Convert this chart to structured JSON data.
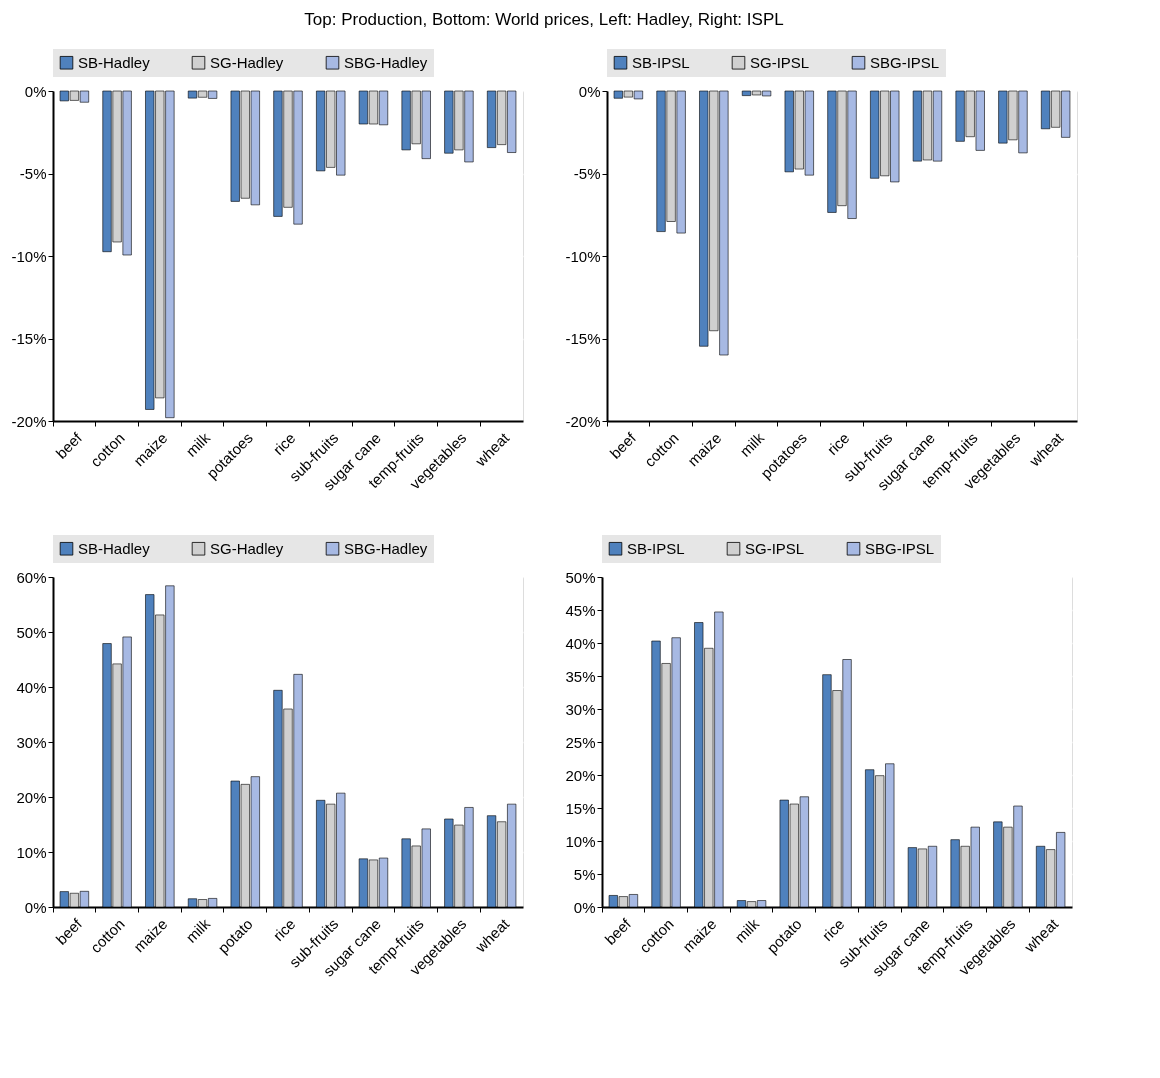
{
  "chart_data": [
    {
      "type": "bar",
      "title": "Top: Production, Bottom: World prices, Left: Hadley, Right: ISPL",
      "categories": [
        "beef",
        "cotton",
        "maize",
        "milk",
        "potatoes",
        "rice",
        "sub-fruits",
        "sugar cane",
        "temp-fruits",
        "vegetables",
        "wheat"
      ],
      "series": [
        {
          "name": "SB-Hadley",
          "color": "#4f81bd",
          "values": [
            -0.6,
            -9.74,
            -19.3,
            -0.43,
            -6.69,
            -7.6,
            -4.84,
            -2.0,
            -3.57,
            -3.77,
            -3.43
          ]
        },
        {
          "name": "SG-Hadley",
          "color": "#d0d0d0",
          "values": [
            -0.57,
            -9.15,
            -18.6,
            -0.38,
            -6.5,
            -7.05,
            -4.63,
            -2.0,
            -3.2,
            -3.57,
            -3.25
          ]
        },
        {
          "name": "SBG-Hadley",
          "color": "#a7b9e3",
          "values": [
            -0.68,
            -9.94,
            -19.8,
            -0.45,
            -6.9,
            -8.07,
            -5.1,
            -2.05,
            -4.1,
            -4.3,
            -3.73
          ]
        }
      ],
      "ylim": [
        -20,
        0
      ],
      "yticks": [
        {
          "value": -20,
          "label": "-20%"
        },
        {
          "value": -15,
          "label": "-15%"
        },
        {
          "value": -10,
          "label": "-10%"
        },
        {
          "value": -5,
          "label": "-5%"
        },
        {
          "value": 0,
          "label": "0%"
        }
      ],
      "grid": true,
      "legend": "top"
    },
    {
      "type": "bar",
      "categories": [
        "beef",
        "cotton",
        "maize",
        "milk",
        "potatoes",
        "rice",
        "sub-fruits",
        "sugar cane",
        "temp-fruits",
        "vegetables",
        "wheat"
      ],
      "series": [
        {
          "name": "SB-IPSL",
          "color": "#4f81bd",
          "values": [
            -0.44,
            -8.52,
            -15.47,
            -0.28,
            -4.9,
            -7.36,
            -5.29,
            -4.25,
            -3.05,
            -3.16,
            -2.29
          ]
        },
        {
          "name": "SG-IPSL",
          "color": "#d0d0d0",
          "values": [
            -0.37,
            -7.91,
            -14.53,
            -0.24,
            -4.73,
            -6.95,
            -5.14,
            -4.18,
            -2.77,
            -2.96,
            -2.2
          ]
        },
        {
          "name": "SBG-IPSL",
          "color": "#a7b9e3",
          "values": [
            -0.48,
            -8.61,
            -16.0,
            -0.3,
            -5.1,
            -7.73,
            -5.51,
            -4.25,
            -3.6,
            -3.75,
            -2.81
          ]
        }
      ],
      "ylim": [
        -20,
        0
      ],
      "yticks": [
        {
          "value": -20,
          "label": "-20%"
        },
        {
          "value": -15,
          "label": "-15%"
        },
        {
          "value": -10,
          "label": "-10%"
        },
        {
          "value": -5,
          "label": "-5%"
        },
        {
          "value": 0,
          "label": "0%"
        }
      ],
      "grid": true,
      "legend": "top"
    },
    {
      "type": "bar",
      "categories": [
        "beef",
        "cotton",
        "maize",
        "milk",
        "potato",
        "rice",
        "sub-fruits",
        "sugar cane",
        "temp-fruits",
        "vegetables",
        "wheat"
      ],
      "series": [
        {
          "name": "SB-Hadley",
          "color": "#4f81bd",
          "values": [
            2.8,
            47.9,
            56.8,
            1.5,
            22.9,
            39.4,
            19.4,
            8.76,
            12.4,
            16.0,
            16.6
          ]
        },
        {
          "name": "SG-Hadley",
          "color": "#d0d0d0",
          "values": [
            2.5,
            44.2,
            53.1,
            1.36,
            22.3,
            36.0,
            18.7,
            8.56,
            11.1,
            14.9,
            15.5
          ]
        },
        {
          "name": "SBG-Hadley",
          "color": "#a7b9e3",
          "values": [
            2.85,
            49.1,
            58.4,
            1.56,
            23.7,
            42.3,
            20.7,
            8.9,
            14.2,
            18.1,
            18.7
          ]
        }
      ],
      "ylim": [
        0,
        60
      ],
      "yticks": [
        {
          "value": 0,
          "label": "0%"
        },
        {
          "value": 10,
          "label": "10%"
        },
        {
          "value": 20,
          "label": "20%"
        },
        {
          "value": 30,
          "label": "30%"
        },
        {
          "value": 40,
          "label": "40%"
        },
        {
          "value": 50,
          "label": "50%"
        },
        {
          "value": 60,
          "label": "60%"
        }
      ],
      "grid": true,
      "legend": "top"
    },
    {
      "type": "bar",
      "categories": [
        "beef",
        "cotton",
        "maize",
        "milk",
        "potato",
        "rice",
        "sub-fruits",
        "sugar cane",
        "temp-fruits",
        "vegetables",
        "wheat"
      ],
      "series": [
        {
          "name": "SB-IPSL",
          "color": "#4f81bd",
          "values": [
            1.75,
            40.3,
            43.1,
            0.98,
            16.2,
            35.2,
            20.8,
            9.0,
            10.2,
            12.9,
            9.2
          ]
        },
        {
          "name": "SG-IPSL",
          "color": "#d0d0d0",
          "values": [
            1.58,
            36.9,
            39.2,
            0.82,
            15.6,
            32.8,
            19.9,
            8.8,
            9.2,
            12.1,
            8.7
          ]
        },
        {
          "name": "SBG-IPSL",
          "color": "#a7b9e3",
          "values": [
            1.9,
            40.8,
            44.7,
            0.98,
            16.7,
            37.5,
            21.7,
            9.2,
            12.1,
            15.3,
            11.3
          ]
        }
      ],
      "ylim": [
        0,
        50
      ],
      "yticks": [
        {
          "value": 0,
          "label": "0%"
        },
        {
          "value": 5,
          "label": "5%"
        },
        {
          "value": 10,
          "label": "10%"
        },
        {
          "value": 15,
          "label": "15%"
        },
        {
          "value": 20,
          "label": "20%"
        },
        {
          "value": 25,
          "label": "25%"
        },
        {
          "value": 30,
          "label": "30%"
        },
        {
          "value": 35,
          "label": "35%"
        },
        {
          "value": 40,
          "label": "40%"
        },
        {
          "value": 45,
          "label": "45%"
        },
        {
          "value": 50,
          "label": "50%"
        }
      ],
      "grid": true,
      "legend": "top"
    }
  ]
}
